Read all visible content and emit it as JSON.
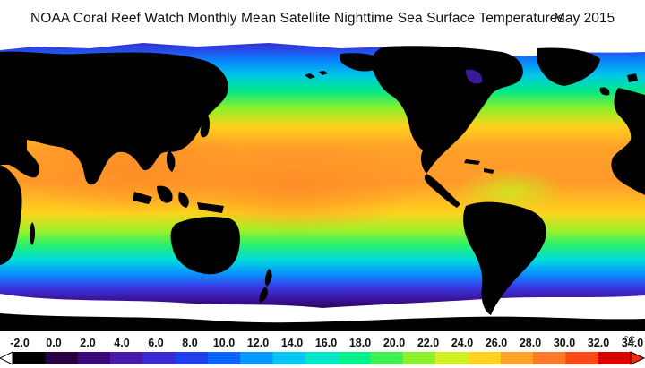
{
  "title": {
    "text": "NOAA Coral Reef Watch Monthly Mean Satellite Nighttime Sea Surface Temperatures",
    "date": "May 2015"
  },
  "map": {
    "land_color": "#000000",
    "ice_color": "#ffffff"
  },
  "legend": {
    "unit": "°C",
    "ticks": [
      "-2.0",
      "0.0",
      "2.0",
      "4.0",
      "6.0",
      "8.0",
      "10.0",
      "12.0",
      "14.0",
      "16.0",
      "18.0",
      "20.0",
      "22.0",
      "24.0",
      "26.0",
      "28.0",
      "30.0",
      "32.0",
      "34.0"
    ],
    "range": [
      -2.0,
      34.0
    ],
    "colors": [
      "#000000",
      "#2a0040",
      "#3b0a7a",
      "#4a1aa8",
      "#3a2ad0",
      "#1f3ef0",
      "#0a64ff",
      "#0896ff",
      "#00c8f0",
      "#00e6c8",
      "#00f08c",
      "#3cf050",
      "#8cf028",
      "#d2f01e",
      "#ffd21e",
      "#ffa028",
      "#ff7828",
      "#ff4614",
      "#dc0000"
    ]
  }
}
